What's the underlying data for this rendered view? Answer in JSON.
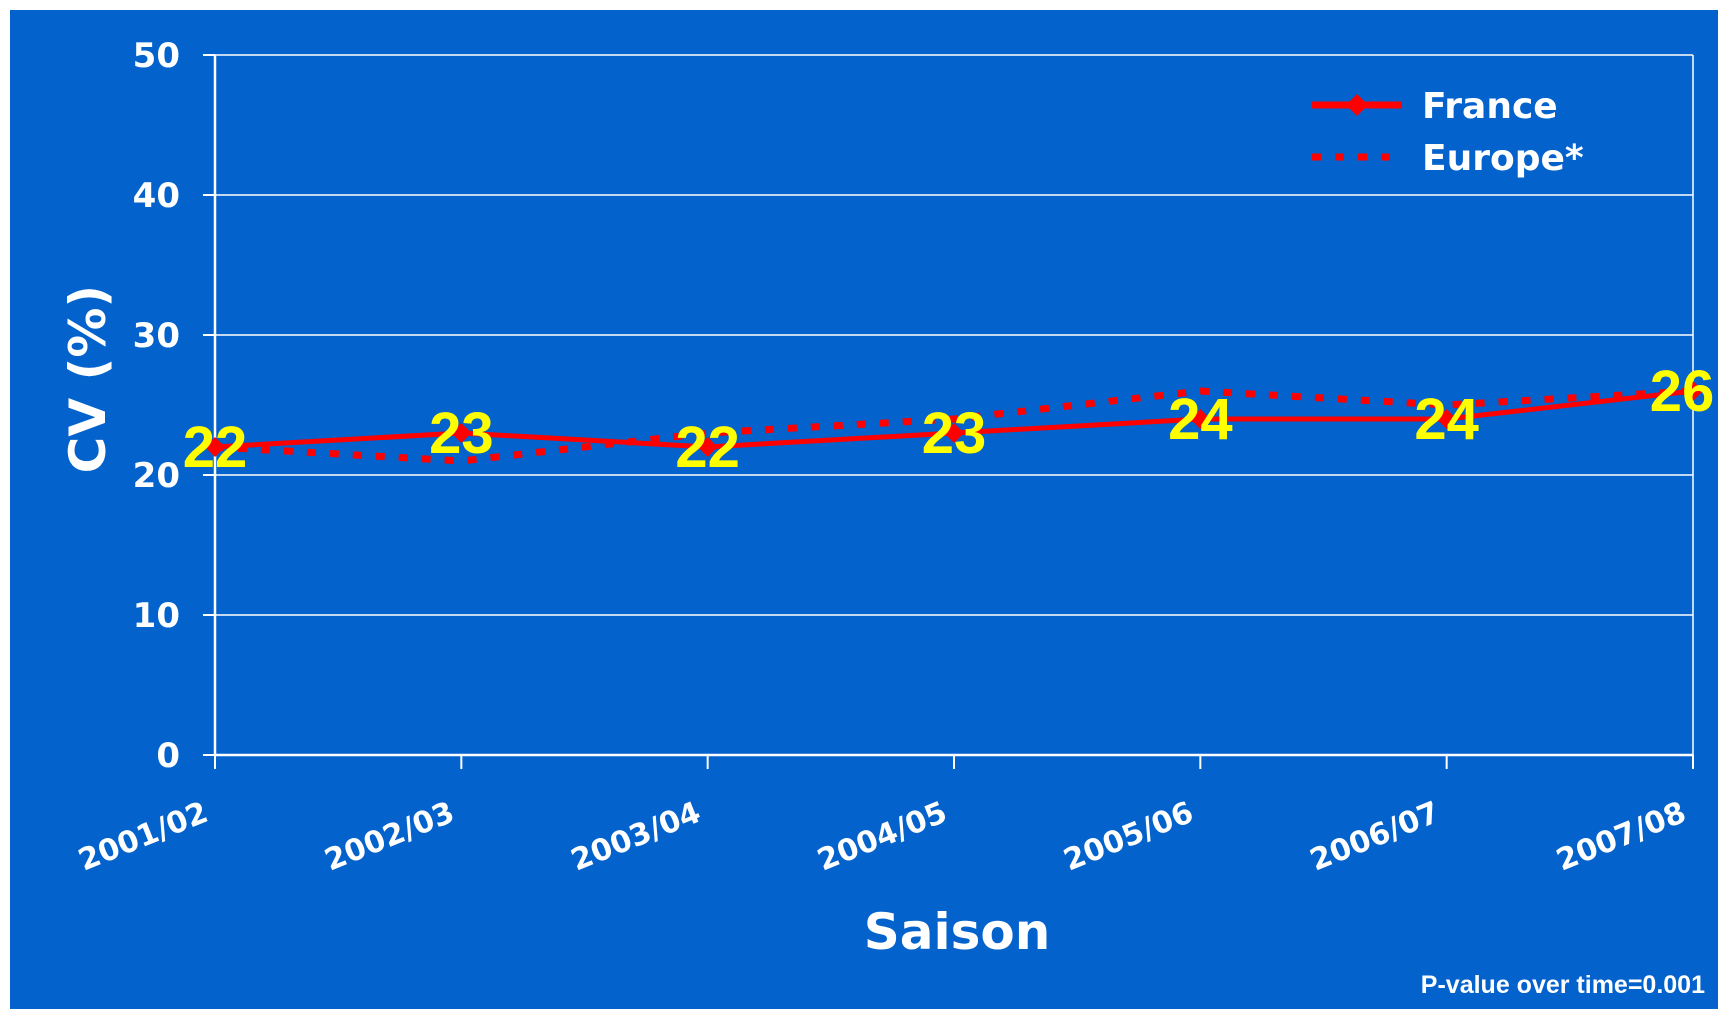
{
  "chart_data": {
    "type": "line",
    "xlabel": "Saison",
    "ylabel": "CV (%)",
    "ylim": [
      0,
      50
    ],
    "yticks": [
      "0",
      "10",
      "20",
      "30",
      "40",
      "50"
    ],
    "categories": [
      "2001/02",
      "2002/03",
      "2003/04",
      "2004/05",
      "2005/06",
      "2006/07",
      "2007/08"
    ],
    "series": [
      {
        "name": "France",
        "values": [
          22,
          23,
          22,
          23,
          24,
          24,
          26
        ],
        "labels": [
          "22",
          "23",
          "22",
          "23",
          "24",
          "24",
          "26"
        ],
        "style": "solid",
        "marker": "diamond"
      },
      {
        "name": "Europe*",
        "values": [
          22,
          21,
          23,
          24,
          26,
          25,
          26
        ],
        "style": "dotted"
      }
    ],
    "grid": true,
    "legend": "top-right",
    "note": "P-value over time=0.001"
  },
  "colors": {
    "background": "#0362cc",
    "axes": "#ffffff",
    "series_line": "#ff0000",
    "data_label": "#ffff00"
  }
}
